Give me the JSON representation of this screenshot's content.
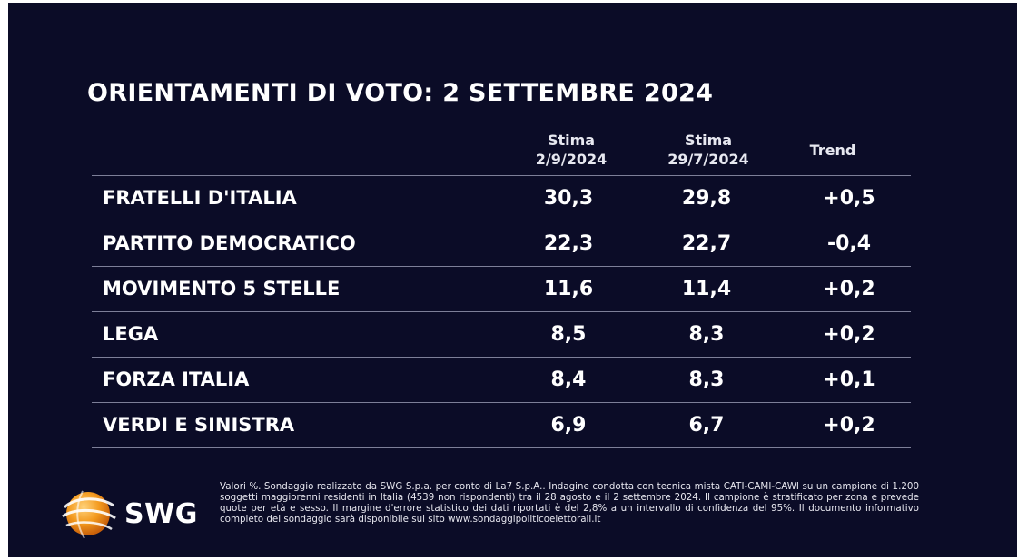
{
  "chart_data": {
    "type": "table",
    "title": "ORIENTAMENTI DI VOTO: 2 SETTEMBRE 2024",
    "columns": [
      {
        "line1": "Stima",
        "line2": "2/9/2024"
      },
      {
        "line1": "Stima",
        "line2": "29/7/2024"
      },
      {
        "line1": "Trend",
        "line2": ""
      }
    ],
    "rows": [
      {
        "party": "FRATELLI D'ITALIA",
        "current": "30,3",
        "previous": "29,8",
        "trend": "+0,5"
      },
      {
        "party": "PARTITO DEMOCRATICO",
        "current": "22,3",
        "previous": "22,7",
        "trend": "-0,4"
      },
      {
        "party": "MOVIMENTO 5 STELLE",
        "current": "11,6",
        "previous": "11,4",
        "trend": "+0,2"
      },
      {
        "party": "LEGA",
        "current": "8,5",
        "previous": "8,3",
        "trend": "+0,2"
      },
      {
        "party": "FORZA ITALIA",
        "current": "8,4",
        "previous": "8,3",
        "trend": "+0,1"
      },
      {
        "party": "VERDI E SINISTRA",
        "current": "6,9",
        "previous": "6,7",
        "trend": "+0,2"
      }
    ]
  },
  "footer": {
    "logo_text": "SWG",
    "note": "Valori %. Sondaggio realizzato da SWG S.p.a. per conto di La7 S.p.A.. Indagine condotta con tecnica mista CATI-CAMI-CAWI su un campione di 1.200 soggetti maggiorenni residenti in Italia (4539 non rispondenti) tra il 28 agosto e il 2 settembre 2024. Il campione è stratificato per zona e prevede quote per età e sesso. Il margine d'errore statistico dei dati riportati è del 2,8% a un intervallo di confidenza del 95%. Il documento informativo completo del sondaggio sarà disponibile sul sito www.sondaggipoliticoelettorali.it"
  },
  "colors": {
    "background": "#0b0c27",
    "text": "#ffffff",
    "logo_orange": "#f39a1e"
  }
}
